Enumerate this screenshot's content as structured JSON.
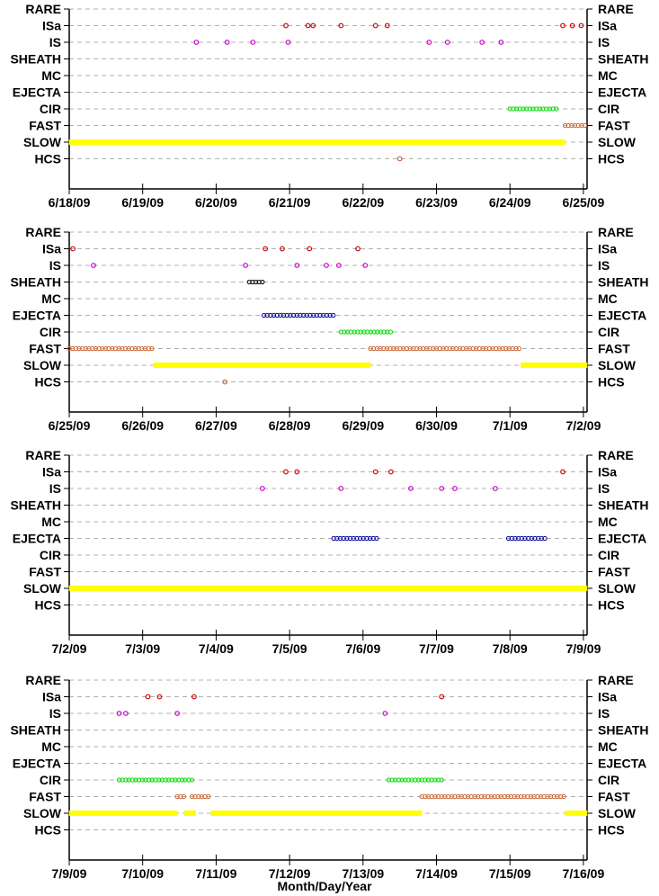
{
  "chart_data": {
    "type": "scatter",
    "categories": [
      "RARE",
      "ISa",
      "IS",
      "SHEATH",
      "MC",
      "EJECTA",
      "CIR",
      "FAST",
      "SLOW",
      "HCS"
    ],
    "xlabel": "Month/Day/Year",
    "colors": {
      "ISa": "#cc0000",
      "IS": "#cc00cc",
      "SHEATH": "#000000",
      "EJECTA": "#000099",
      "CIR": "#00dd00",
      "FAST": "#cc6633",
      "SLOW": "#ffff00",
      "HCS": "#cc6633",
      "grid": "#b0b0b0"
    },
    "panels": [
      {
        "xticks": [
          "6/18/09",
          "6/19/09",
          "6/20/09",
          "6/21/09",
          "6/22/09",
          "6/23/09",
          "6/24/09",
          "6/25/09"
        ],
        "xlim": [
          0,
          7.05
        ],
        "points": {
          "ISa": [
            2.95,
            3.25,
            3.32,
            3.7,
            4.17,
            4.33,
            6.72,
            6.85,
            6.97
          ],
          "IS": [
            1.73,
            2.15,
            2.5,
            2.98,
            4.9,
            5.15,
            5.62,
            5.88
          ],
          "HCS": [
            4.5
          ]
        },
        "ranges": {
          "SLOW": [
            [
              0,
              6.75
            ]
          ],
          "CIR": [
            [
              6.0,
              6.65
            ]
          ],
          "FAST": [
            [
              6.75,
              7.05
            ]
          ]
        }
      },
      {
        "xticks": [
          "6/25/09",
          "6/26/09",
          "6/27/09",
          "6/28/09",
          "6/29/09",
          "6/30/09",
          "7/1/09",
          "7/2/09"
        ],
        "xlim": [
          0,
          7.05
        ],
        "points": {
          "ISa": [
            0.05,
            2.67,
            2.9,
            3.27,
            3.93
          ],
          "IS": [
            0.33,
            2.4,
            3.1,
            3.5,
            3.67,
            4.03
          ],
          "HCS": [
            2.12
          ]
        },
        "ranges": {
          "SHEATH": [
            [
              2.45,
              2.65
            ]
          ],
          "EJECTA": [
            [
              2.65,
              3.6
            ]
          ],
          "CIR": [
            [
              3.7,
              4.4
            ]
          ],
          "FAST": [
            [
              0,
              1.15
            ],
            [
              4.1,
              6.15
            ]
          ],
          "SLOW": [
            [
              1.15,
              4.1
            ],
            [
              6.15,
              7.05
            ]
          ]
        }
      },
      {
        "xticks": [
          "7/2/09",
          "7/3/09",
          "7/4/09",
          "7/5/09",
          "7/6/09",
          "7/7/09",
          "7/8/09",
          "7/9/09"
        ],
        "xlim": [
          0,
          7.05
        ],
        "points": {
          "ISa": [
            2.95,
            3.1,
            4.17,
            4.38,
            6.72
          ],
          "IS": [
            2.63,
            3.7,
            4.65,
            5.07,
            5.25,
            5.8
          ]
        },
        "ranges": {
          "EJECTA": [
            [
              3.6,
              4.2
            ],
            [
              5.98,
              6.5
            ]
          ],
          "SLOW": [
            [
              0,
              7.05
            ]
          ]
        }
      },
      {
        "xticks": [
          "7/9/09",
          "7/10/09",
          "7/11/09",
          "7/12/09",
          "7/13/09",
          "7/14/09",
          "7/15/09",
          "7/16/09"
        ],
        "xlim": [
          0,
          7.05
        ],
        "points": {
          "ISa": [
            1.07,
            1.23,
            1.7,
            5.07
          ],
          "IS": [
            0.68,
            0.77,
            1.47,
            4.3
          ]
        },
        "ranges": {
          "CIR": [
            [
              0.68,
              1.68
            ],
            [
              4.35,
              5.1
            ]
          ],
          "FAST": [
            [
              1.47,
              1.57
            ],
            [
              1.67,
              1.93
            ],
            [
              4.8,
              6.75
            ]
          ],
          "SLOW": [
            [
              0,
              1.47
            ],
            [
              1.57,
              1.72
            ],
            [
              1.93,
              4.8
            ],
            [
              6.75,
              7.05
            ]
          ]
        }
      }
    ]
  }
}
